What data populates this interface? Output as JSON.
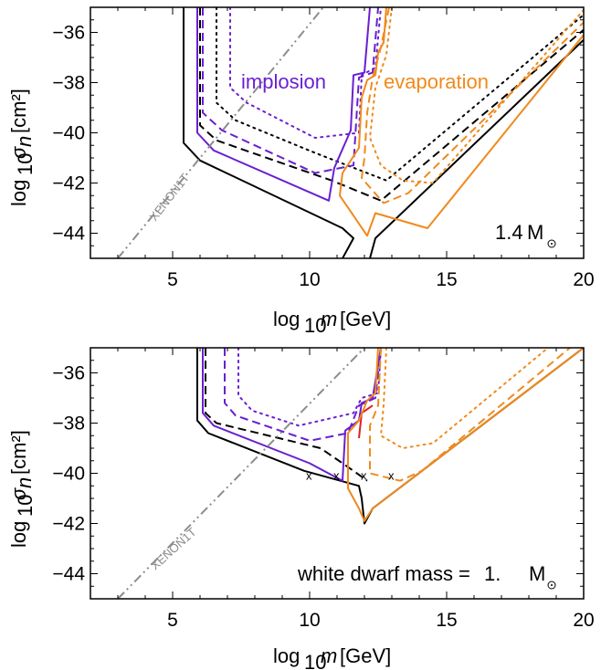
{
  "colors": {
    "black": "#000000",
    "purple": "#6a1fd1",
    "orange": "#f08a1c",
    "gray": "#8c8c8c",
    "red": "#e02020"
  },
  "chart_data": [
    {
      "type": "line",
      "xlabel": "log10m [GeV]",
      "ylabel": "log10σn [cm²]",
      "xlim": [
        2,
        20
      ],
      "ylim": [
        -45,
        -35
      ],
      "xticks": [
        5,
        10,
        15,
        20
      ],
      "yticks": [
        -36,
        -38,
        -40,
        -42,
        -44
      ],
      "annotations": {
        "implosion": "implosion",
        "evaporation": "evaporation",
        "xenon": "XENON1T",
        "mass_value": "1.4",
        "mass_unit": "M"
      },
      "series": [
        {
          "color": "black",
          "style": "solid",
          "points": [
            [
              5.4,
              -35
            ],
            [
              5.4,
              -40.4
            ],
            [
              6.0,
              -41.1
            ],
            [
              11.2,
              -43.8
            ],
            [
              11.6,
              -44.2
            ],
            [
              11.2,
              -45
            ]
          ]
        },
        {
          "color": "black",
          "style": "solid",
          "points": [
            [
              12.2,
              -45
            ],
            [
              12.4,
              -44.2
            ],
            [
              20,
              -36.3
            ]
          ]
        },
        {
          "color": "black",
          "style": "dashed",
          "points": [
            [
              6.0,
              -35
            ],
            [
              6.0,
              -39.7
            ],
            [
              6.6,
              -40.3
            ],
            [
              10.8,
              -41.9
            ],
            [
              12.6,
              -42.7
            ],
            [
              20,
              -35.9
            ]
          ]
        },
        {
          "color": "black",
          "style": "dotted",
          "points": [
            [
              6.6,
              -35
            ],
            [
              6.6,
              -38.8
            ],
            [
              7.3,
              -39.5
            ],
            [
              10.2,
              -40.8
            ],
            [
              12.8,
              -41.9
            ],
            [
              20,
              -35.3
            ]
          ]
        },
        {
          "color": "purple",
          "style": "solid",
          "points": [
            [
              5.9,
              -35
            ],
            [
              5.9,
              -40.0
            ],
            [
              6.5,
              -40.7
            ],
            [
              10.7,
              -42.7
            ],
            [
              10.9,
              -41.4
            ],
            [
              11.1,
              -40.9
            ],
            [
              11.3,
              -40.4
            ],
            [
              11.5,
              -39.9
            ],
            [
              11.6,
              -37.7
            ],
            [
              12.0,
              -37.6
            ],
            [
              12.2,
              -35
            ]
          ]
        },
        {
          "color": "purple",
          "style": "dashed",
          "points": [
            [
              6.1,
              -35
            ],
            [
              6.1,
              -39.2
            ],
            [
              6.8,
              -39.9
            ],
            [
              10.2,
              -41.6
            ],
            [
              11.6,
              -41.3
            ],
            [
              11.8,
              -37.8
            ],
            [
              12.3,
              -37.6
            ],
            [
              12.5,
              -35
            ]
          ]
        },
        {
          "color": "purple",
          "style": "dotted",
          "points": [
            [
              7.1,
              -35
            ],
            [
              7.1,
              -38.2
            ],
            [
              7.7,
              -38.8
            ],
            [
              10.2,
              -40.2
            ],
            [
              11.8,
              -40.0
            ],
            [
              11.9,
              -37.7
            ],
            [
              12.4,
              -37.4
            ],
            [
              12.6,
              -35
            ]
          ]
        },
        {
          "color": "orange",
          "style": "solid",
          "points": [
            [
              12.8,
              -35
            ],
            [
              12.7,
              -36.4
            ],
            [
              12.5,
              -36.8
            ],
            [
              12.4,
              -37.7
            ],
            [
              12.1,
              -37.9
            ],
            [
              11.9,
              -38.6
            ],
            [
              11.8,
              -40.6
            ],
            [
              11.5,
              -41.1
            ],
            [
              11.2,
              -41.6
            ],
            [
              11.1,
              -42.5
            ],
            [
              11.6,
              -43.3
            ],
            [
              12.1,
              -44.1
            ],
            [
              12.4,
              -43.2
            ],
            [
              14.3,
              -43.8
            ],
            [
              20,
              -36.1
            ]
          ]
        },
        {
          "color": "orange",
          "style": "dashed",
          "points": [
            [
              12.9,
              -35
            ],
            [
              12.6,
              -36.6
            ],
            [
              12.3,
              -37.8
            ],
            [
              12.1,
              -39.2
            ],
            [
              12.0,
              -41.0
            ],
            [
              11.9,
              -41.8
            ],
            [
              12.7,
              -42.8
            ],
            [
              13.6,
              -42.4
            ],
            [
              20,
              -35.6
            ]
          ]
        },
        {
          "color": "orange",
          "style": "dotted",
          "points": [
            [
              13.0,
              -35
            ],
            [
              12.8,
              -36.9
            ],
            [
              12.4,
              -38.2
            ],
            [
              12.2,
              -40.2
            ],
            [
              12.6,
              -41.3
            ],
            [
              13.4,
              -41.9
            ],
            [
              14.5,
              -42.0
            ],
            [
              20,
              -35.1
            ]
          ]
        },
        {
          "color": "gray",
          "style": "dashdot",
          "points": [
            [
              3.0,
              -45
            ],
            [
              10.5,
              -35
            ]
          ]
        }
      ]
    },
    {
      "type": "line",
      "xlabel": "log10m [GeV]",
      "ylabel": "log10σn [cm²]",
      "xlim": [
        2,
        20
      ],
      "ylim": [
        -45,
        -35
      ],
      "xticks": [
        5,
        10,
        15,
        20
      ],
      "yticks": [
        -36,
        -38,
        -40,
        -42,
        -44
      ],
      "annotations": {
        "xenon": "XENON1T",
        "mass_label": "white dwarf mass =",
        "mass_value": "1.",
        "mass_unit": "M"
      },
      "markers": [
        [
          10,
          -40.1
        ],
        [
          11,
          -40.1
        ],
        [
          12,
          -40.1
        ],
        [
          13,
          -40.1
        ]
      ],
      "series": [
        {
          "color": "black",
          "style": "solid",
          "points": [
            [
              5.9,
              -35
            ],
            [
              5.9,
              -37.9
            ],
            [
              6.3,
              -38.4
            ],
            [
              9.8,
              -39.9
            ],
            [
              11.8,
              -40.5
            ],
            [
              11.9,
              -41.0
            ],
            [
              12.0,
              -42.0
            ],
            [
              12.3,
              -41.4
            ],
            [
              20,
              -35
            ]
          ]
        },
        {
          "color": "black",
          "style": "dashed",
          "points": [
            [
              6.2,
              -35
            ],
            [
              6.2,
              -37.6
            ],
            [
              6.6,
              -38.0
            ],
            [
              10.4,
              -39.0
            ],
            [
              11.6,
              -39.9
            ],
            [
              12.1,
              -40.3
            ]
          ]
        },
        {
          "color": "purple",
          "style": "solid",
          "points": [
            [
              6.1,
              -35
            ],
            [
              6.1,
              -37.6
            ],
            [
              6.5,
              -38.1
            ],
            [
              10.0,
              -39.6
            ],
            [
              11.2,
              -40.3
            ],
            [
              11.3,
              -38.3
            ],
            [
              11.8,
              -37.9
            ],
            [
              11.9,
              -37.2
            ],
            [
              12.3,
              -37.0
            ],
            [
              12.6,
              -35
            ]
          ]
        },
        {
          "color": "purple",
          "style": "dashed",
          "points": [
            [
              6.9,
              -35
            ],
            [
              6.9,
              -37.2
            ],
            [
              7.3,
              -37.7
            ],
            [
              10.0,
              -38.7
            ],
            [
              11.4,
              -38.4
            ],
            [
              11.8,
              -37.3
            ],
            [
              12.4,
              -37.0
            ],
            [
              12.6,
              -35
            ]
          ]
        },
        {
          "color": "purple",
          "style": "dotted",
          "points": [
            [
              7.4,
              -35
            ],
            [
              7.4,
              -36.9
            ],
            [
              7.9,
              -37.5
            ],
            [
              9.6,
              -38.1
            ],
            [
              11.6,
              -37.6
            ],
            [
              11.9,
              -37.0
            ],
            [
              12.5,
              -36.8
            ],
            [
              12.6,
              -35
            ]
          ]
        },
        {
          "color": "red",
          "style": "solid",
          "points": [
            [
              11.8,
              -38.6
            ],
            [
              11.9,
              -37.6
            ],
            [
              12.3,
              -37.3
            ]
          ]
        },
        {
          "color": "orange",
          "style": "solid",
          "points": [
            [
              12.5,
              -35
            ],
            [
              12.4,
              -36.8
            ],
            [
              12.1,
              -37.1
            ],
            [
              11.8,
              -37.9
            ],
            [
              11.4,
              -38.4
            ],
            [
              11.4,
              -40.6
            ],
            [
              11.8,
              -41.4
            ],
            [
              12.0,
              -41.9
            ],
            [
              12.3,
              -41.4
            ],
            [
              20,
              -35
            ]
          ]
        },
        {
          "color": "orange",
          "style": "dashed",
          "points": [
            [
              12.6,
              -35
            ],
            [
              12.5,
              -37.3
            ],
            [
              12.2,
              -38.1
            ],
            [
              12.2,
              -40.0
            ],
            [
              13.3,
              -40.3
            ],
            [
              14.1,
              -39.9
            ],
            [
              19.5,
              -35
            ]
          ]
        },
        {
          "color": "orange",
          "style": "dotted",
          "points": [
            [
              12.8,
              -35
            ],
            [
              12.7,
              -37.3
            ],
            [
              12.6,
              -38.5
            ],
            [
              13.4,
              -39.0
            ],
            [
              14.5,
              -38.8
            ],
            [
              18.7,
              -35
            ]
          ]
        },
        {
          "color": "gray",
          "style": "dashdot",
          "points": [
            [
              3.0,
              -45
            ],
            [
              12.0,
              -35
            ]
          ]
        }
      ]
    }
  ]
}
